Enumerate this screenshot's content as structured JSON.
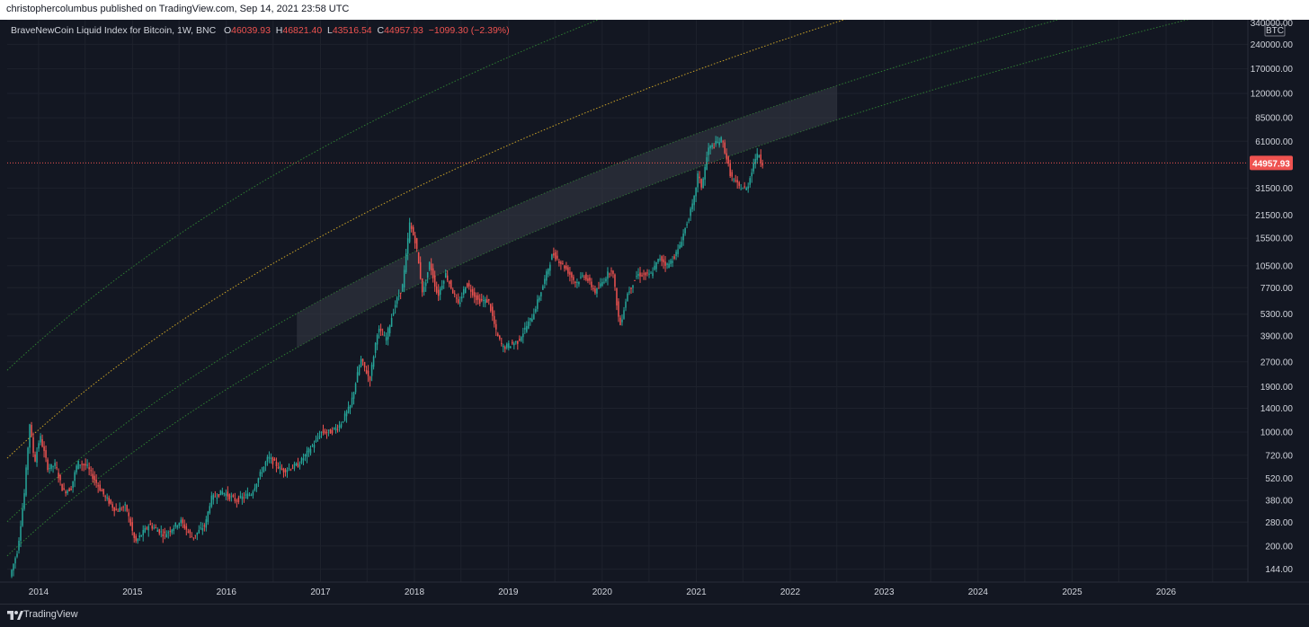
{
  "header": {
    "published_text": "christophercolumbus published on TradingView.com, Sep 14, 2021 23:58 UTC"
  },
  "legend": {
    "symbol_text": "BraveNewCoin Liquid Index for Bitcoin, 1W, BNC",
    "open_label": "O",
    "open": "46039.93",
    "high_label": "H",
    "high": "46821.40",
    "low_label": "L",
    "low": "43516.54",
    "close_label": "C",
    "close": "44957.93",
    "change": "−1099.30 (−2.39%)"
  },
  "footer": {
    "brand": "TradingView"
  },
  "colors": {
    "background": "#131722",
    "grid": "#1e222d",
    "up": "#26a69a",
    "down": "#ef5350",
    "band_green": "#2e7d32",
    "band_mid": "#c9a227",
    "price_line": "#ef5350",
    "channel_fill": "#363a45"
  },
  "chart_data": {
    "type": "candlestick",
    "title": "BraveNewCoin Liquid Index for Bitcoin, 1W, BNC",
    "y_scale": "log",
    "currency_label": "BTC",
    "ylim": [
      120,
      340000
    ],
    "xlim": [
      "2013-09-01",
      "2026-11-15"
    ],
    "x_ticks": [
      "2014",
      "2015",
      "2016",
      "2017",
      "2018",
      "2019",
      "2020",
      "2021",
      "2022",
      "2023",
      "2024",
      "2025",
      "2026"
    ],
    "y_ticks": [
      {
        "value": 340000,
        "label": "340000.00"
      },
      {
        "value": 240000,
        "label": "240000.00"
      },
      {
        "value": 170000,
        "label": "170000.00"
      },
      {
        "value": 120000,
        "label": "120000.00"
      },
      {
        "value": 85000,
        "label": "85000.00"
      },
      {
        "value": 61000,
        "label": "61000.00"
      },
      {
        "value": 31500,
        "label": "31500.00"
      },
      {
        "value": 21500,
        "label": "21500.00"
      },
      {
        "value": 15500,
        "label": "15500.00"
      },
      {
        "value": 10500,
        "label": "10500.00"
      },
      {
        "value": 7700,
        "label": "7700.00"
      },
      {
        "value": 5300,
        "label": "5300.00"
      },
      {
        "value": 3900,
        "label": "3900.00"
      },
      {
        "value": 2700,
        "label": "2700.00"
      },
      {
        "value": 1900,
        "label": "1900.00"
      },
      {
        "value": 1400,
        "label": "1400.00"
      },
      {
        "value": 1000,
        "label": "1000.00"
      },
      {
        "value": 720,
        "label": "720.00"
      },
      {
        "value": 520,
        "label": "520.00"
      },
      {
        "value": 380,
        "label": "380.00"
      },
      {
        "value": 280,
        "label": "280.00"
      },
      {
        "value": 200,
        "label": "200.00"
      },
      {
        "value": 144,
        "label": "144.00"
      }
    ],
    "last_price": {
      "value": 44957.93,
      "label": "44957.93"
    },
    "price_path": [
      [
        "2013-09-15",
        130
      ],
      [
        "2013-10-15",
        190
      ],
      [
        "2013-11-10",
        420
      ],
      [
        "2013-12-01",
        1130
      ],
      [
        "2013-12-20",
        650
      ],
      [
        "2014-01-10",
        950
      ],
      [
        "2014-02-10",
        600
      ],
      [
        "2014-03-10",
        630
      ],
      [
        "2014-04-10",
        430
      ],
      [
        "2014-05-10",
        450
      ],
      [
        "2014-06-05",
        650
      ],
      [
        "2014-07-10",
        620
      ],
      [
        "2014-08-10",
        510
      ],
      [
        "2014-09-20",
        400
      ],
      [
        "2014-11-01",
        330
      ],
      [
        "2014-12-10",
        350
      ],
      [
        "2015-01-15",
        210
      ],
      [
        "2015-03-10",
        270
      ],
      [
        "2015-05-10",
        235
      ],
      [
        "2015-07-10",
        285
      ],
      [
        "2015-08-25",
        225
      ],
      [
        "2015-10-15",
        270
      ],
      [
        "2015-11-05",
        390
      ],
      [
        "2015-12-20",
        430
      ],
      [
        "2016-02-10",
        380
      ],
      [
        "2016-04-10",
        420
      ],
      [
        "2016-06-15",
        700
      ],
      [
        "2016-08-10",
        580
      ],
      [
        "2016-10-10",
        630
      ],
      [
        "2016-12-20",
        890
      ],
      [
        "2017-01-05",
        1000
      ],
      [
        "2017-02-10",
        1000
      ],
      [
        "2017-03-20",
        1100
      ],
      [
        "2017-05-01",
        1450
      ],
      [
        "2017-06-10",
        2800
      ],
      [
        "2017-07-15",
        2100
      ],
      [
        "2017-08-15",
        4300
      ],
      [
        "2017-09-15",
        3700
      ],
      [
        "2017-10-20",
        6000
      ],
      [
        "2017-11-20",
        8000
      ],
      [
        "2017-12-17",
        19000
      ],
      [
        "2018-01-10",
        14500
      ],
      [
        "2018-02-06",
        7000
      ],
      [
        "2018-03-05",
        11000
      ],
      [
        "2018-04-05",
        6800
      ],
      [
        "2018-05-05",
        9400
      ],
      [
        "2018-06-25",
        6000
      ],
      [
        "2018-07-25",
        8200
      ],
      [
        "2018-09-10",
        6400
      ],
      [
        "2018-10-20",
        6400
      ],
      [
        "2018-11-20",
        4000
      ],
      [
        "2018-12-15",
        3300
      ],
      [
        "2019-02-10",
        3600
      ],
      [
        "2019-04-10",
        5200
      ],
      [
        "2019-05-20",
        8000
      ],
      [
        "2019-06-26",
        12500
      ],
      [
        "2019-08-15",
        10200
      ],
      [
        "2019-09-25",
        8200
      ],
      [
        "2019-10-26",
        9300
      ],
      [
        "2019-12-10",
        7200
      ],
      [
        "2020-02-12",
        10300
      ],
      [
        "2020-03-13",
        4400
      ],
      [
        "2020-04-10",
        7000
      ],
      [
        "2020-05-20",
        9300
      ],
      [
        "2020-07-10",
        9200
      ],
      [
        "2020-08-15",
        11800
      ],
      [
        "2020-09-15",
        10500
      ],
      [
        "2020-10-25",
        13000
      ],
      [
        "2020-11-25",
        18500
      ],
      [
        "2020-12-25",
        26000
      ],
      [
        "2021-01-10",
        38000
      ],
      [
        "2021-01-25",
        32000
      ],
      [
        "2021-02-20",
        55000
      ],
      [
        "2021-03-15",
        58000
      ],
      [
        "2021-04-14",
        63000
      ],
      [
        "2021-05-19",
        37000
      ],
      [
        "2021-06-20",
        32000
      ],
      [
        "2021-07-20",
        31000
      ],
      [
        "2021-08-20",
        48000
      ],
      [
        "2021-09-06",
        51000
      ],
      [
        "2021-09-14",
        44957.93
      ]
    ]
  }
}
